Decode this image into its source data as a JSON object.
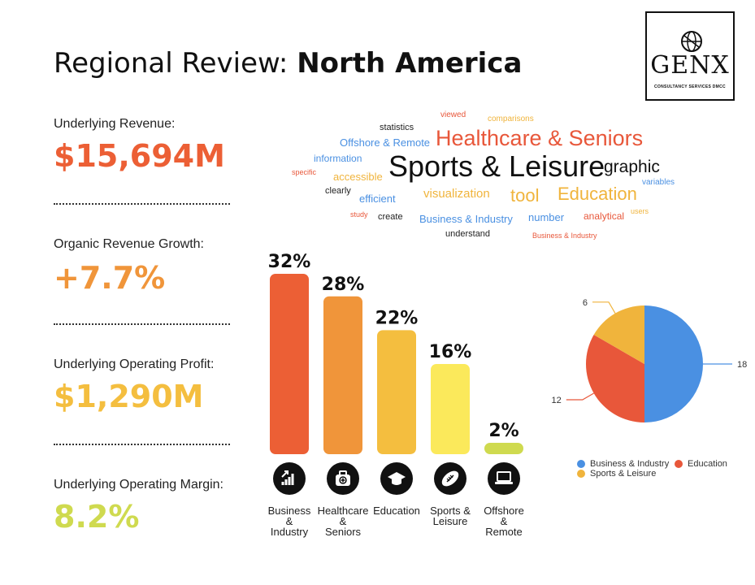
{
  "title": {
    "prefix": "Regional Review: ",
    "bold": "North America"
  },
  "logo": {
    "text": "GENX",
    "subtitle": "CONSULTANCY SERVICES DMCC"
  },
  "kpis": [
    {
      "label": "Underlying Revenue:",
      "value": "$15,694M",
      "color": "#ec5f35"
    },
    {
      "label": "Organic Revenue Growth:",
      "value": "+7.7%",
      "color": "#f0953a"
    },
    {
      "label": "Underlying Operating Profit:",
      "value": "$1,290M",
      "color": "#f4be3f"
    },
    {
      "label": "Underlying Operating Margin:",
      "value": "8.2%",
      "color": "#cfda4f"
    }
  ],
  "word_cloud": [
    {
      "text": "viewed",
      "color": "#e8573a"
    },
    {
      "text": "comparisons",
      "color": "#f0b43c"
    },
    {
      "text": "statistics",
      "color": "#222222"
    },
    {
      "text": "Healthcare & Seniors",
      "color": "#e8573a"
    },
    {
      "text": "Offshore & Remote",
      "color": "#4a90e2"
    },
    {
      "text": "information",
      "color": "#4a90e2"
    },
    {
      "text": "Sports & Leisure",
      "color": "#111111"
    },
    {
      "text": "graphic",
      "color": "#111111"
    },
    {
      "text": "specific",
      "color": "#e8573a"
    },
    {
      "text": "accessible",
      "color": "#f0b43c"
    },
    {
      "text": "variables",
      "color": "#4a90e2"
    },
    {
      "text": "clearly",
      "color": "#222222"
    },
    {
      "text": "efficient",
      "color": "#4a90e2"
    },
    {
      "text": "visualization",
      "color": "#f0b43c"
    },
    {
      "text": "tool",
      "color": "#f0b43c"
    },
    {
      "text": "Education",
      "color": "#f0b43c"
    },
    {
      "text": "study",
      "color": "#e8573a"
    },
    {
      "text": "create",
      "color": "#222222"
    },
    {
      "text": "Business & Industry",
      "color": "#4a90e2"
    },
    {
      "text": "number",
      "color": "#4a90e2"
    },
    {
      "text": "analytical",
      "color": "#e8573a"
    },
    {
      "text": "users",
      "color": "#f0b43c"
    },
    {
      "text": "understand",
      "color": "#222222"
    },
    {
      "text": "Business & Industry",
      "color": "#e8573a"
    }
  ],
  "chart_data": [
    {
      "type": "bar",
      "categories": [
        "Business & Industry",
        "Healthcare & Seniors",
        "Education",
        "Sports & Leisure",
        "Offshore & Remote"
      ],
      "category_lines": [
        [
          "Business",
          "&",
          "Industry"
        ],
        [
          "Healthcare",
          "&",
          "Seniors"
        ],
        [
          "Education"
        ],
        [
          "Sports &",
          "Leisure"
        ],
        [
          "Offshore",
          "&",
          "Remote"
        ]
      ],
      "values": [
        32,
        28,
        22,
        16,
        2
      ],
      "value_labels": [
        "32%",
        "28%",
        "22%",
        "16%",
        "2%"
      ],
      "colors": [
        "#ec5f35",
        "#f0953a",
        "#f4be3f",
        "#fbe95b",
        "#cfda4f"
      ],
      "icons": [
        "growth-chart-icon",
        "medical-kit-icon",
        "graduation-cap-icon",
        "football-icon",
        "laptop-icon"
      ],
      "ylim": [
        0,
        32
      ]
    },
    {
      "type": "pie",
      "categories": [
        "Business & Industry",
        "Education",
        "Sports & Leisure"
      ],
      "values": [
        18,
        12,
        6
      ],
      "value_labels": [
        "18",
        "12",
        "6"
      ],
      "colors": [
        "#4a90e2",
        "#e8573a",
        "#f0b43c"
      ],
      "legend": [
        "Business & Industry",
        "Education",
        "Sports & Leisure"
      ],
      "legend_position": "bottom"
    }
  ]
}
